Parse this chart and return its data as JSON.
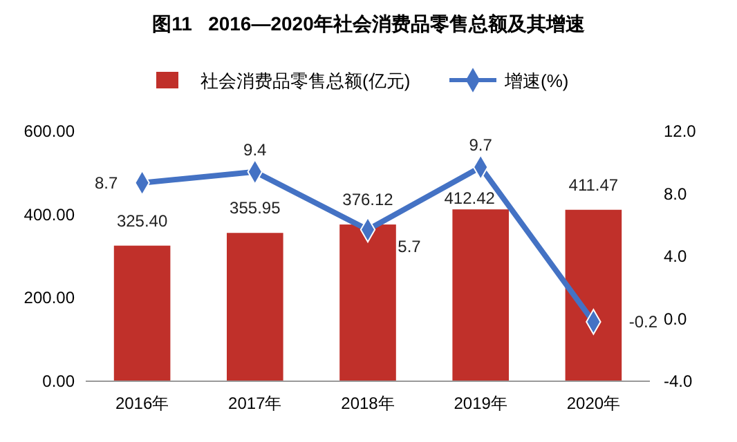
{
  "chart_data": {
    "type": "bar",
    "title": "图11   2016—2020年社会消费品零售总额及其增速",
    "categories": [
      "2016年",
      "2017年",
      "2018年",
      "2019年",
      "2020年"
    ],
    "series": [
      {
        "name": "社会消费品零售总额(亿元)",
        "color": "#c0302a",
        "values": [
          325.4,
          355.95,
          376.12,
          412.42,
          411.47
        ],
        "value_labels": [
          "325.40",
          "355.95",
          "376.12",
          "412.42",
          "411.47"
        ]
      },
      {
        "name": "增速(%)",
        "type": "line",
        "axis": "y2",
        "color": "#4472c4",
        "marker": "diamond",
        "values": [
          8.7,
          9.4,
          5.7,
          9.7,
          -0.2
        ],
        "value_labels": [
          "8.7",
          "9.4",
          "5.7",
          "9.7",
          "-0.2"
        ]
      }
    ],
    "ylim": [
      0,
      600
    ],
    "yticks": [
      {
        "value": 0,
        "label": "0.00"
      },
      {
        "value": 200,
        "label": "200.00"
      },
      {
        "value": 400,
        "label": "400.00"
      },
      {
        "value": 600,
        "label": "600.00"
      }
    ],
    "y2lim": [
      -4,
      12
    ],
    "y2ticks": [
      {
        "value": -4,
        "label": "-4.0"
      },
      {
        "value": 0,
        "label": "0.0"
      },
      {
        "value": 4,
        "label": "4.0"
      },
      {
        "value": 8,
        "label": "8.0"
      },
      {
        "value": 12,
        "label": "12.0"
      }
    ],
    "legend": "top",
    "grid": false
  }
}
